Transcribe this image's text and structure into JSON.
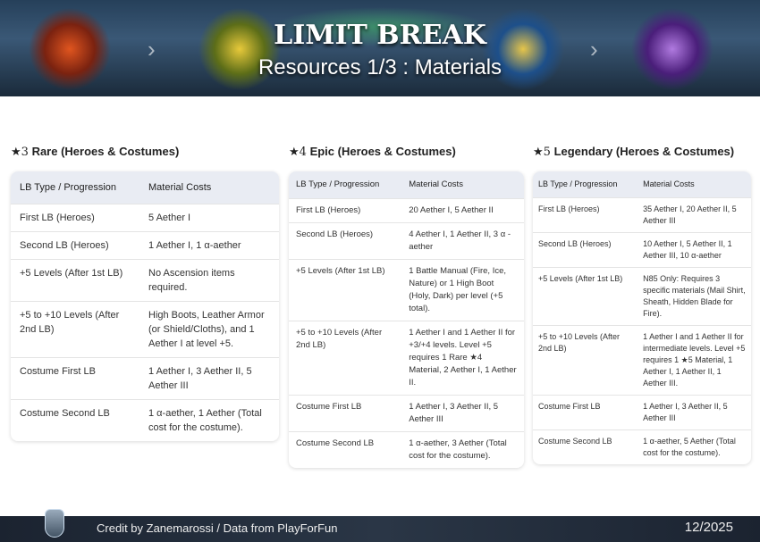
{
  "banner": {
    "title": "LIMIT BREAK",
    "subtitle": "Resources 1/3 : Materials"
  },
  "sections": [
    {
      "star": "★3",
      "title": "Rare (Heroes & Costumes)",
      "headers": [
        "LB Type / Progression",
        "Material Costs"
      ],
      "rows": [
        [
          "First LB (Heroes)",
          "5 Aether I"
        ],
        [
          "Second LB (Heroes)",
          "1 Aether I, 1 α-aether"
        ],
        [
          "+5 Levels (After 1st LB)",
          "No Ascension items required."
        ],
        [
          "+5 to +10 Levels (After 2nd LB)",
          "High Boots, Leather Armor (or Shield/Cloths), and 1 Aether I at level +5."
        ],
        [
          "Costume First LB",
          "1 Aether I, 3 Aether II, 5 Aether III"
        ],
        [
          "Costume Second LB",
          "1 α-aether, 1 Aether (Total cost for the costume)."
        ]
      ]
    },
    {
      "star": "★4",
      "title": "Epic (Heroes & Costumes)",
      "headers": [
        "LB Type / Progression",
        "Material Costs"
      ],
      "rows": [
        [
          "First LB (Heroes)",
          "20 Aether I, 5 Aether II"
        ],
        [
          "Second LB (Heroes)",
          "4 Aether I, 1 Aether II, 3 α -aether"
        ],
        [
          "+5 Levels (After 1st LB)",
          "1 Battle Manual (Fire, Ice, Nature) or 1 High Boot (Holy, Dark) per level (+5 total)."
        ],
        [
          "+5 to +10 Levels (After 2nd LB)",
          "1 Aether I and 1 Aether II for +3/+4 levels. Level +5 requires 1 Rare ★4 Material, 2 Aether I, 1 Aether II."
        ],
        [
          "Costume First LB",
          "1 Aether I, 3 Aether II, 5 Aether III"
        ],
        [
          "Costume Second LB",
          "1 α-aether, 3 Aether (Total cost for the costume)."
        ]
      ]
    },
    {
      "star": "★5",
      "title": "Legendary (Heroes & Costumes)",
      "headers": [
        "LB Type / Progression",
        "Material Costs"
      ],
      "rows": [
        [
          "First LB (Heroes)",
          "35 Aether I, 20 Aether II, 5 Aether III"
        ],
        [
          "Second LB (Heroes)",
          "10 Aether I, 5 Aether II, 1 Aether III, 10 α-aether"
        ],
        [
          "+5 Levels (After 1st LB)",
          "N85 Only: Requires 3 specific materials (Mail Shirt, Sheath, Hidden Blade for Fire)."
        ],
        [
          "+5 to +10 Levels (After 2nd LB)",
          "1 Aether I and 1 Aether II for intermediate levels. Level +5 requires 1 ★5 Material, 1 Aether I, 1 Aether II, 1 Aether III."
        ],
        [
          "Costume First LB",
          "1 Aether I, 3 Aether II, 5 Aether III"
        ],
        [
          "Costume Second LB",
          "1 α-aether, 5 Aether (Total cost for the costume)."
        ]
      ]
    }
  ],
  "footer": {
    "credit": "Credit by Zanemarossi / Data from PlayForFun",
    "date": "12/2025"
  }
}
